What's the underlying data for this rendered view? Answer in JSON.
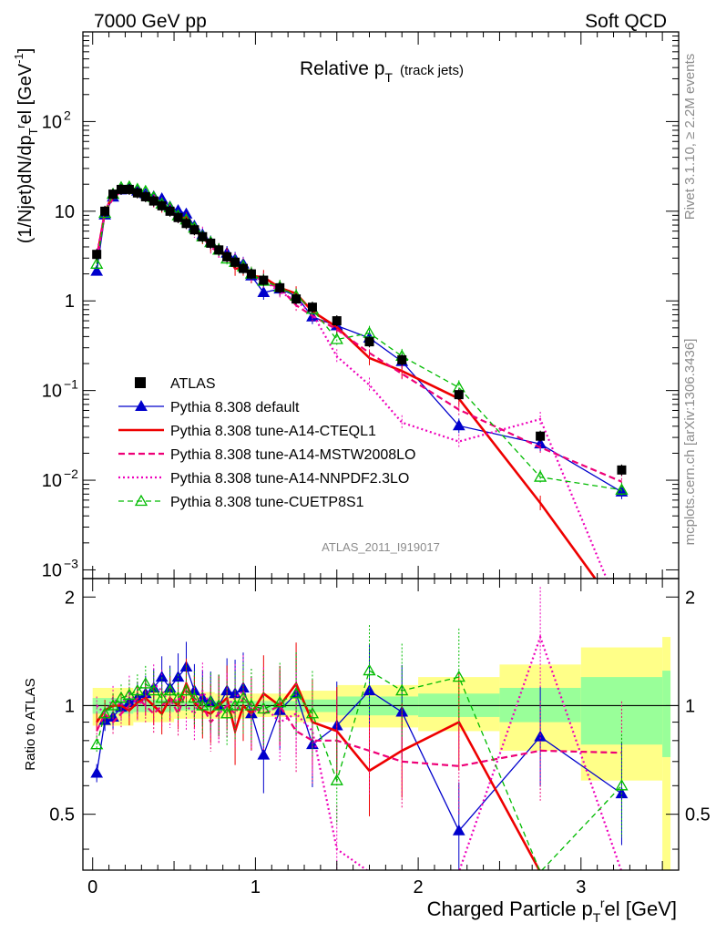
{
  "header": {
    "left": "7000 GeV pp",
    "right": "Soft QCD"
  },
  "side_labels": {
    "rivet": "Rivet 3.1.10, ≥ 2.2M events",
    "mcplots": "mcplots.cern.ch [arXiv:1306.3436]"
  },
  "chart_data": {
    "type": "line",
    "title": "Relative p",
    "title_sub": "T",
    "title_extra": "(track jets)",
    "watermark": "ATLAS_2011_I919017",
    "ylabel_main": "(1/Njet)dN/dp_T^rel [GeV^-1]",
    "ylabel_main_parts": [
      "(1/Njet)dN/dp",
      "T",
      "r",
      "el [GeV",
      "-1",
      "]"
    ],
    "ylabel_ratio": "Ratio to ATLAS",
    "xlabel": "Charged Particle p_T^rel [GeV]",
    "xlabel_parts": [
      "Charged Particle p",
      "T",
      "r",
      "el [GeV]"
    ],
    "x_ticks": [
      "0",
      "1",
      "2",
      "3"
    ],
    "y_main_ticks": [
      {
        "base": "10",
        "exp": "2",
        "value": 100
      },
      {
        "base": "10",
        "exp": "",
        "value": 10
      },
      {
        "base": "1",
        "exp": "",
        "value": 1
      },
      {
        "base": "10",
        "exp": "−1",
        "value": 0.1
      },
      {
        "base": "10",
        "exp": "−2",
        "value": 0.01
      },
      {
        "base": "10",
        "exp": "−3",
        "value": 0.001
      }
    ],
    "y_ratio_ticks": [
      "2",
      "1",
      "0.5"
    ],
    "xlim": [
      -0.06,
      3.6
    ],
    "ylim_main": [
      0.0008,
      1000
    ],
    "ylim_ratio": [
      0.35,
      2.25
    ],
    "log_y_main": true,
    "log_y_ratio": true,
    "legend_position": "bottom-left",
    "legend": [
      {
        "label": "ATLAS",
        "color": "#000000",
        "style": "marker-square"
      },
      {
        "label": "Pythia 8.308 default",
        "color": "#0000cc",
        "style": "solid-triangle"
      },
      {
        "label": "Pythia 8.308 tune-A14-CTEQL1",
        "color": "#ee0000",
        "style": "solid-thick"
      },
      {
        "label": "Pythia 8.308 tune-A14-MSTW2008LO",
        "color": "#ee0077",
        "style": "dashed"
      },
      {
        "label": "Pythia 8.308 tune-A14-NNPDF2.3LO",
        "color": "#ee00bb",
        "style": "dotted"
      },
      {
        "label": "Pythia 8.308 tune-CUETP8S1",
        "color": "#00bb00",
        "style": "dashed-open-triangle"
      }
    ],
    "x": [
      0.025,
      0.075,
      0.125,
      0.175,
      0.225,
      0.275,
      0.325,
      0.375,
      0.425,
      0.475,
      0.525,
      0.575,
      0.625,
      0.675,
      0.725,
      0.775,
      0.825,
      0.875,
      0.925,
      0.975,
      1.05,
      1.15,
      1.25,
      1.35,
      1.5,
      1.7,
      1.9,
      2.25,
      2.75,
      3.25
    ],
    "data_values": [
      3.3,
      10.0,
      15.5,
      17.5,
      17.5,
      16.0,
      14.5,
      13.0,
      11.5,
      10.0,
      8.5,
      7.3,
      6.2,
      5.2,
      4.4,
      3.7,
      3.1,
      2.7,
      2.3,
      2.0,
      1.7,
      1.4,
      1.05,
      0.85,
      0.6,
      0.35,
      0.22,
      0.09,
      0.031,
      0.013
    ],
    "series": [
      {
        "name": "Pythia 8.308 default",
        "ratio": [
          0.65,
          0.91,
          0.93,
          0.99,
          1.02,
          1.05,
          1.08,
          1.12,
          1.2,
          1.12,
          1.2,
          1.28,
          1.1,
          1.05,
          1.03,
          1.0,
          1.1,
          1.08,
          1.12,
          0.95,
          0.73,
          0.97,
          1.08,
          0.78,
          0.88,
          1.1,
          0.96,
          0.45,
          0.82,
          0.57
        ]
      },
      {
        "name": "Pythia 8.308 tune-A14-CTEQL1",
        "ratio": [
          0.9,
          0.97,
          1.0,
          1.0,
          0.97,
          1.02,
          1.05,
          1.0,
          0.95,
          1.05,
          1.0,
          1.15,
          1.02,
          0.97,
          0.95,
          1.0,
          1.05,
          0.85,
          1.0,
          0.95,
          1.08,
          1.0,
          1.15,
          0.9,
          0.85,
          0.66,
          0.75,
          0.9,
          0.18,
          0.0
        ]
      },
      {
        "name": "Pythia 8.308 tune-A14-MSTW2008LO",
        "ratio": [
          0.85,
          0.95,
          0.9,
          0.95,
          1.0,
          1.05,
          1.0,
          0.95,
          1.0,
          1.05,
          0.95,
          1.1,
          1.05,
          1.0,
          0.9,
          0.95,
          1.0,
          0.95,
          1.05,
          1.0,
          0.95,
          1.0,
          0.85,
          0.8,
          0.8,
          0.75,
          0.7,
          0.68,
          0.75,
          0.74
        ]
      },
      {
        "name": "Pythia 8.308 tune-A14-NNPDF2.3LO",
        "ratio": [
          1.0,
          0.95,
          1.05,
          1.0,
          1.1,
          1.0,
          1.05,
          1.15,
          1.1,
          1.0,
          1.05,
          1.0,
          0.95,
          1.1,
          1.0,
          0.95,
          1.0,
          1.05,
          1.1,
          0.95,
          1.0,
          0.9,
          0.95,
          0.85,
          0.4,
          0.33,
          0.2,
          0.3,
          1.55,
          0.0
        ]
      },
      {
        "name": "Pythia 8.308 tune-CUETP8S1",
        "ratio": [
          0.78,
          0.95,
          1.0,
          1.05,
          1.07,
          1.1,
          1.15,
          1.1,
          1.05,
          1.1,
          1.05,
          1.1,
          1.05,
          1.0,
          1.02,
          1.0,
          0.95,
          1.0,
          1.05,
          1.0,
          0.98,
          1.02,
          1.08,
          0.95,
          0.62,
          1.25,
          1.1,
          1.2,
          0.35,
          0.6
        ]
      }
    ],
    "band_edges": [
      0.0,
      0.25,
      0.5,
      0.75,
      1.0,
      1.25,
      1.5,
      2.0,
      2.5,
      3.0,
      3.5
    ],
    "band_green": [
      [
        0.95,
        1.05
      ],
      [
        0.96,
        1.04
      ],
      [
        0.97,
        1.03
      ],
      [
        0.97,
        1.03
      ],
      [
        0.97,
        1.03
      ],
      [
        0.96,
        1.04
      ],
      [
        0.94,
        1.06
      ],
      [
        0.93,
        1.08
      ],
      [
        0.9,
        1.12
      ],
      [
        0.78,
        1.2
      ],
      [
        0.72,
        1.25
      ]
    ],
    "band_yellow": [
      [
        0.88,
        1.12
      ],
      [
        0.9,
        1.1
      ],
      [
        0.92,
        1.09
      ],
      [
        0.92,
        1.08
      ],
      [
        0.93,
        1.08
      ],
      [
        0.9,
        1.1
      ],
      [
        0.87,
        1.14
      ],
      [
        0.85,
        1.2
      ],
      [
        0.75,
        1.3
      ],
      [
        0.62,
        1.45
      ],
      [
        0.35,
        1.55
      ]
    ]
  }
}
